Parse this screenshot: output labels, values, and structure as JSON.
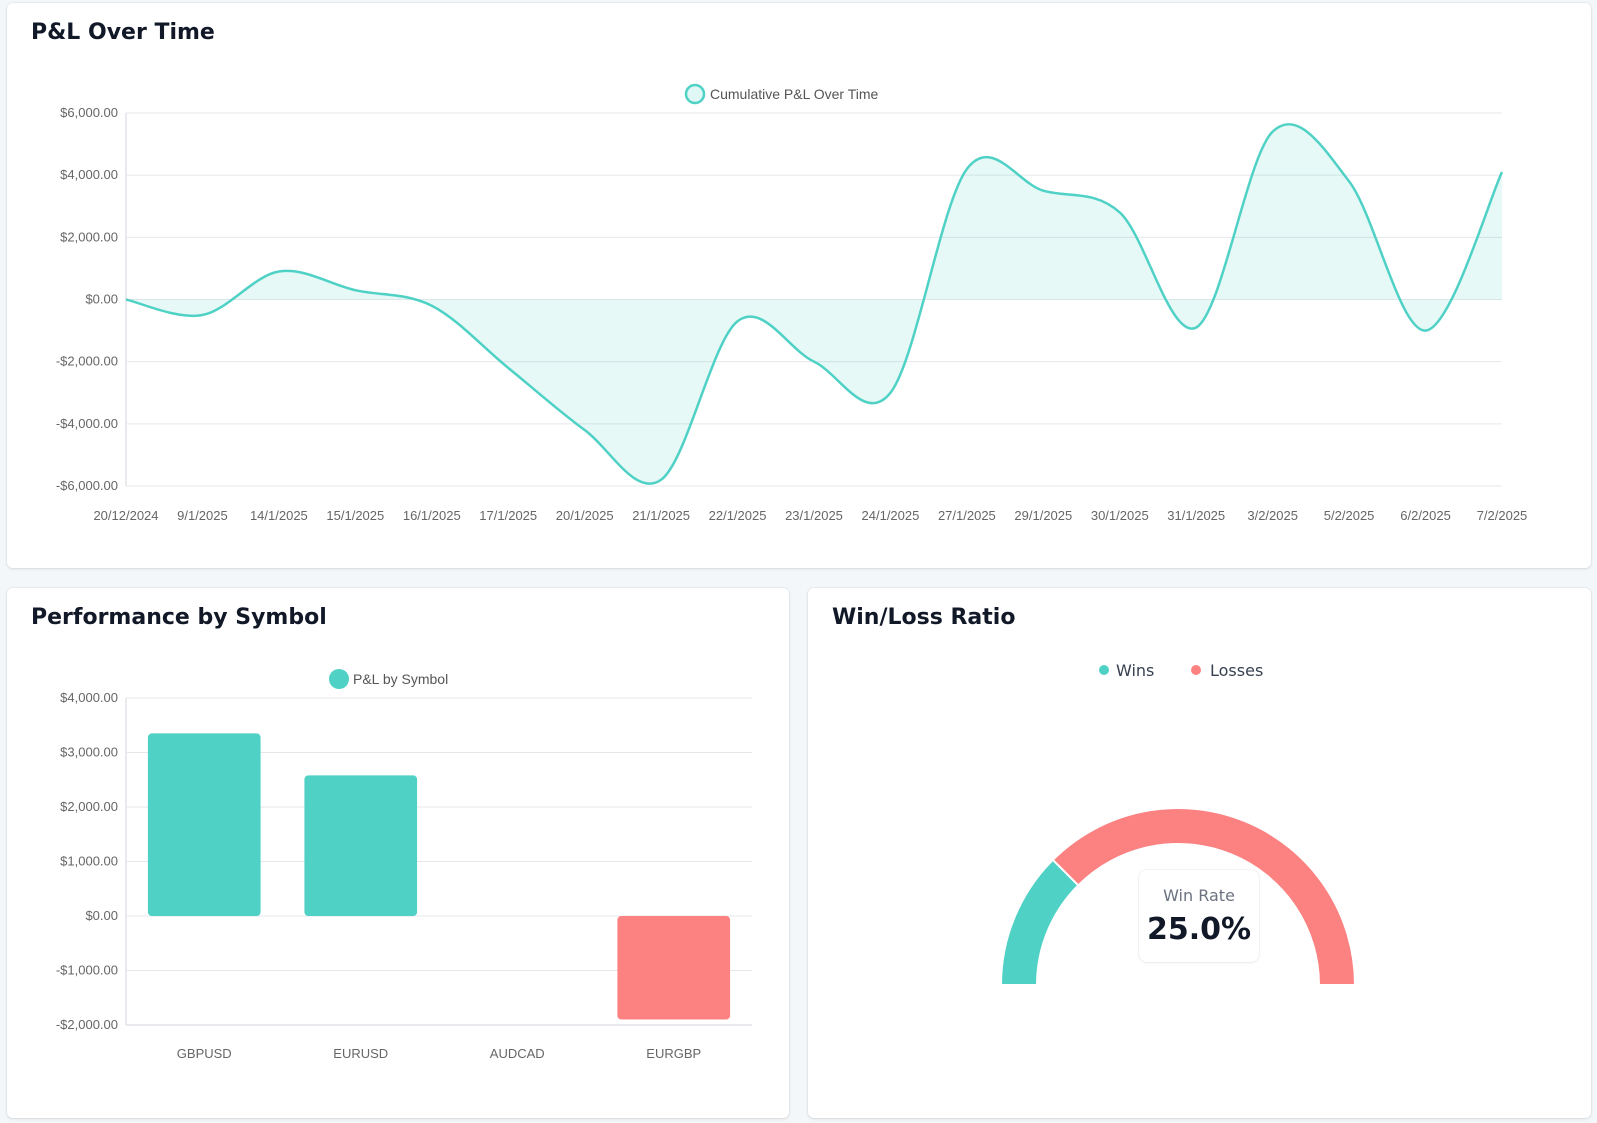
{
  "colors": {
    "teal": "#4fd1c5",
    "red": "#fc8181",
    "grid": "#e5e7eb",
    "axis_text": "#666666"
  },
  "pnl_card": {
    "title": "P&L Over Time",
    "chart_data": {
      "type": "area",
      "legend": [
        "Cumulative P&L Over Time"
      ],
      "series": [
        {
          "name": "Cumulative P&L Over Time",
          "values": [
            0,
            -500,
            900,
            300,
            -200,
            -2200,
            -4200,
            -5800,
            -700,
            -2000,
            -3000,
            4200,
            3500,
            2800,
            -900,
            5400,
            3800,
            -1000,
            4100
          ]
        }
      ],
      "x": [
        "20/12/2024",
        "9/1/2025",
        "14/1/2025",
        "15/1/2025",
        "16/1/2025",
        "17/1/2025",
        "20/1/2025",
        "21/1/2025",
        "22/1/2025",
        "23/1/2025",
        "24/1/2025",
        "27/1/2025",
        "29/1/2025",
        "30/1/2025",
        "31/1/2025",
        "3/2/2025",
        "5/2/2025",
        "6/2/2025",
        "7/2/2025"
      ],
      "ylim": [
        -6000,
        6000
      ],
      "yticks": [
        6000,
        4000,
        2000,
        0,
        -2000,
        -4000,
        -6000
      ],
      "ytick_labels": [
        "$6,000.00",
        "$4,000.00",
        "$2,000.00",
        "$0.00",
        "-$2,000.00",
        "-$4,000.00",
        "-$6,000.00"
      ],
      "grid": true,
      "legend_position": "top-center"
    }
  },
  "symbol_card": {
    "title": "Performance by Symbol",
    "chart_data": {
      "type": "bar",
      "legend": [
        "P&L by Symbol"
      ],
      "categories": [
        "GBPUSD",
        "EURUSD",
        "AUDCAD",
        "EURGBP"
      ],
      "values": [
        3350,
        2580,
        0,
        -1900
      ],
      "ylim": [
        -2000,
        4000
      ],
      "yticks": [
        4000,
        3000,
        2000,
        1000,
        0,
        -1000,
        -2000
      ],
      "ytick_labels": [
        "$4,000.00",
        "$3,000.00",
        "$2,000.00",
        "$1,000.00",
        "$0.00",
        "-$1,000.00",
        "-$2,000.00"
      ],
      "grid": true,
      "legend_position": "top-center"
    }
  },
  "winloss_card": {
    "title": "Win/Loss Ratio",
    "chart_data": {
      "type": "pie",
      "categories": [
        "Wins",
        "Losses"
      ],
      "values": [
        25,
        75
      ],
      "legend_position": "top-center"
    },
    "center_label": "Win Rate",
    "center_value": "25.0%"
  }
}
